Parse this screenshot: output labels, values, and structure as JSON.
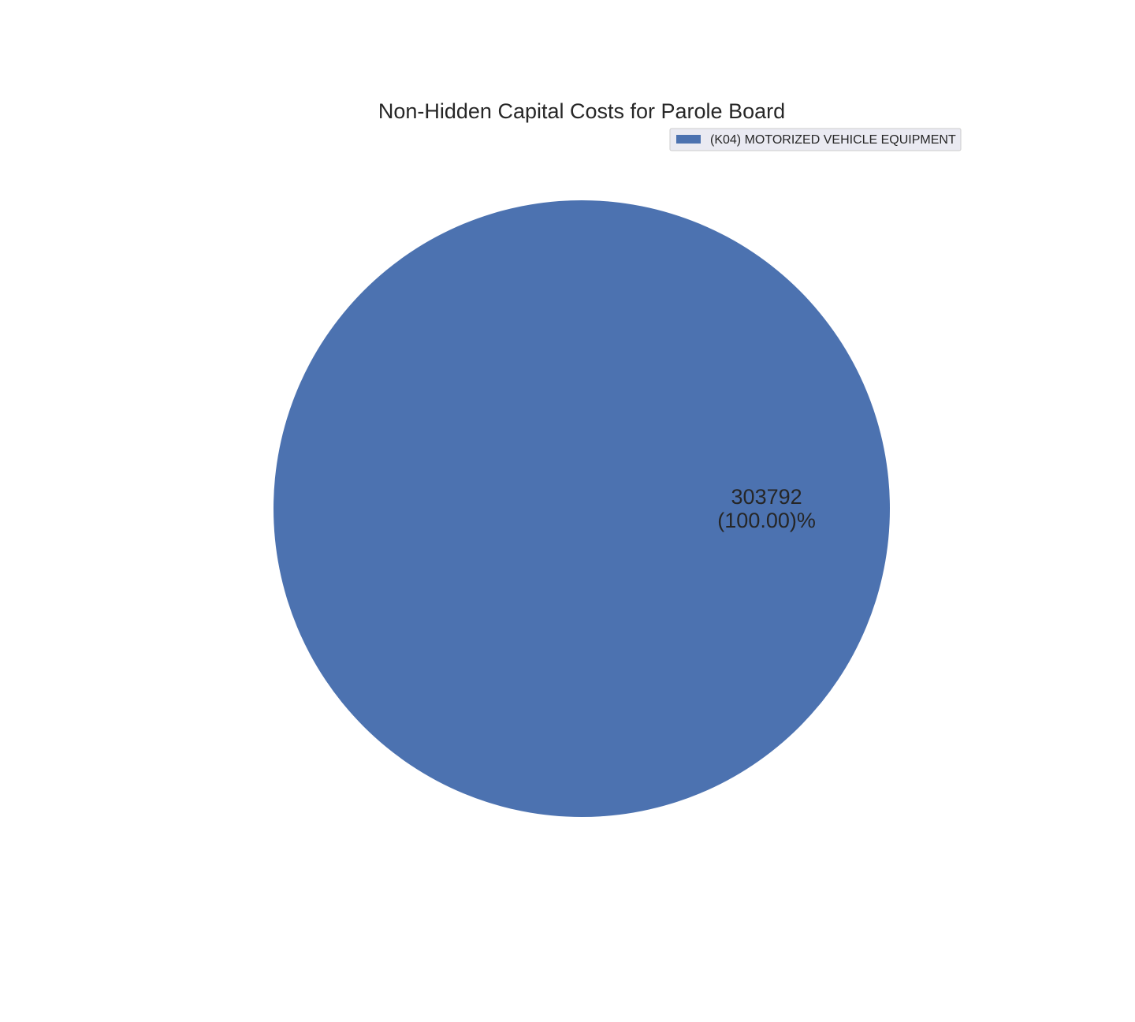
{
  "chart_data": {
    "type": "pie",
    "title": "Non-Hidden Capital Costs for Parole Board",
    "slices": [
      {
        "label": "(K04) MOTORIZED VEHICLE EQUIPMENT",
        "value": 303792,
        "percent": 100.0,
        "value_text": "303792",
        "percent_text": "(100.00)%",
        "color": "#4c72b0"
      }
    ],
    "legend": {
      "placement": "top-right",
      "entries": [
        "(K04) MOTORIZED VEHICLE EQUIPMENT"
      ]
    },
    "colors": {
      "legend_background": "#eaeaf2",
      "legend_border": "#cccccc"
    }
  }
}
